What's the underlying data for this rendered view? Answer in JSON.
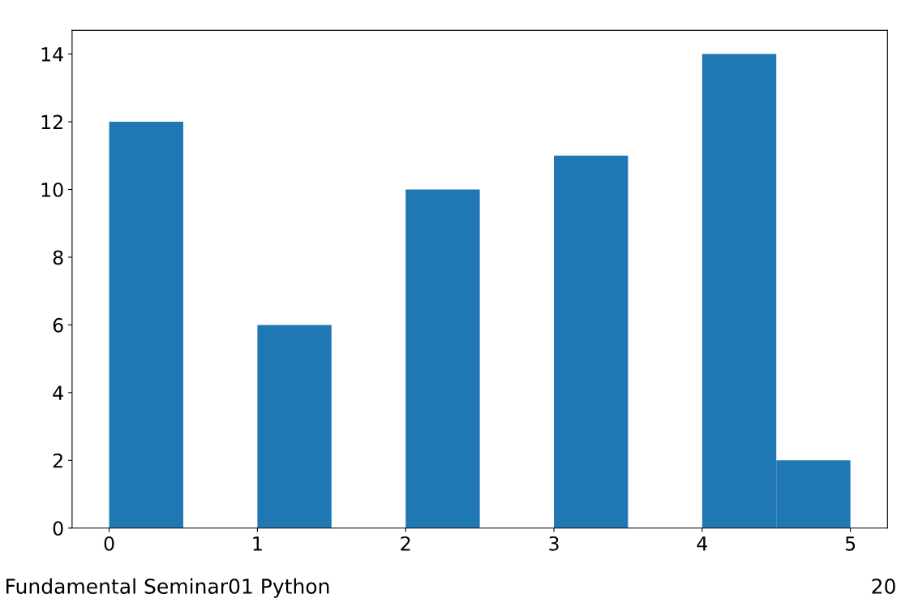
{
  "chart_data": {
    "type": "histogram",
    "bins": [
      0,
      0.5,
      1,
      1.5,
      2,
      2.5,
      3,
      3.5,
      4,
      4.5,
      5
    ],
    "values": [
      12,
      0,
      6,
      0,
      10,
      0,
      11,
      0,
      14,
      2
    ],
    "color": "#1f77b4",
    "xlim": [
      -0.25,
      5.25
    ],
    "ylim": [
      0,
      14.7
    ],
    "xticks": [
      0,
      1,
      2,
      3,
      4,
      5
    ],
    "yticks": [
      0,
      2,
      4,
      6,
      8,
      10,
      12,
      14
    ],
    "grid": false,
    "annotations": [
      "Fundamental Seminar01 Python",
      "20"
    ]
  }
}
